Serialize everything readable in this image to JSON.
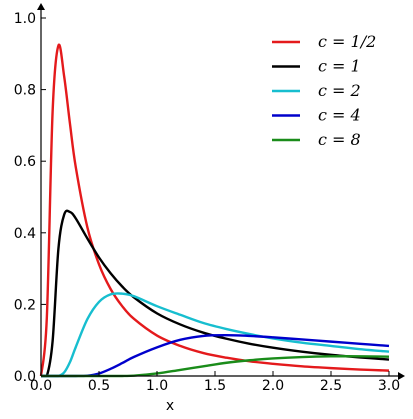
{
  "chart_data": {
    "type": "line",
    "xlabel": "x",
    "ylabel": "",
    "xlim": [
      0.0,
      3.0
    ],
    "ylim": [
      0.0,
      1.0
    ],
    "x_ticks": [
      "0.0",
      "0.5",
      "1.0",
      "1.5",
      "2.0",
      "2.5",
      "3.0"
    ],
    "y_ticks": [
      "0.0",
      "0.2",
      "0.4",
      "0.6",
      "0.8",
      "1.0"
    ],
    "grid": false,
    "legend_position": "top-right",
    "x": [
      0.0,
      0.05,
      0.1,
      0.15,
      0.2,
      0.25,
      0.3,
      0.4,
      0.5,
      0.6,
      0.7,
      0.8,
      1.0,
      1.2,
      1.4,
      1.6,
      1.8,
      2.0,
      2.25,
      2.5,
      2.75,
      3.0
    ],
    "series": [
      {
        "name": "c = 1/2",
        "color": "#e41a1c",
        "values": [
          0.0,
          0.161,
          0.738,
          0.923,
          0.836,
          0.704,
          0.583,
          0.415,
          0.312,
          0.243,
          0.195,
          0.16,
          0.113,
          0.084,
          0.064,
          0.051,
          0.041,
          0.034,
          0.027,
          0.022,
          0.018,
          0.015
        ]
      },
      {
        "name": "c = 1",
        "color": "#000000",
        "values": [
          0.0,
          0.0,
          0.097,
          0.355,
          0.451,
          0.458,
          0.44,
          0.384,
          0.331,
          0.287,
          0.25,
          0.22,
          0.175,
          0.144,
          0.121,
          0.104,
          0.09,
          0.079,
          0.068,
          0.059,
          0.052,
          0.046
        ]
      },
      {
        "name": "c = 2",
        "color": "#17becf",
        "values": [
          0.0,
          0.0,
          0.0,
          0.0,
          0.01,
          0.039,
          0.081,
          0.159,
          0.207,
          0.228,
          0.23,
          0.223,
          0.195,
          0.171,
          0.148,
          0.131,
          0.117,
          0.105,
          0.093,
          0.084,
          0.075,
          0.068
        ]
      },
      {
        "name": "c = 4",
        "color": "#0000cc",
        "values": [
          0.0,
          0.0,
          0.0,
          0.0,
          0.0,
          0.0,
          0.0,
          0.001,
          0.007,
          0.02,
          0.036,
          0.053,
          0.08,
          0.101,
          0.112,
          0.114,
          0.112,
          0.108,
          0.102,
          0.096,
          0.09,
          0.084
        ]
      },
      {
        "name": "c = 8",
        "color": "#1a8c1a",
        "values": [
          0.0,
          0.0,
          0.0,
          0.0,
          0.0,
          0.0,
          0.0,
          0.0,
          0.0,
          0.0,
          0.0,
          0.001,
          0.007,
          0.017,
          0.027,
          0.037,
          0.044,
          0.049,
          0.053,
          0.055,
          0.055,
          0.054
        ]
      }
    ]
  }
}
